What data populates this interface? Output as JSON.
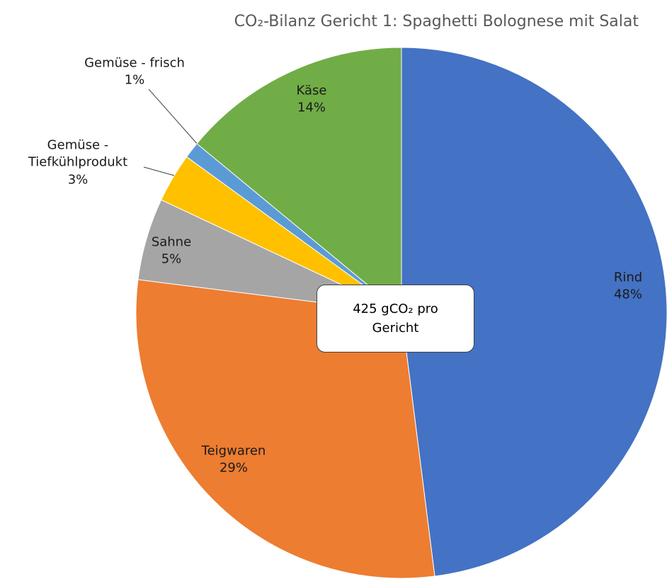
{
  "chart_data": {
    "type": "pie",
    "title": "CO₂-Bilanz Gericht 1: Spaghetti Bolognese mit Salat",
    "annotation": "425 gCO₂ pro Gericht",
    "categories": [
      "Rind",
      "Teigwaren",
      "Sahne",
      "Gemüse - Tiefkühlprodukt",
      "Gemüse - frisch",
      "Käse"
    ],
    "values": [
      48,
      29,
      5,
      3,
      1,
      14
    ],
    "value_labels": [
      "48%",
      "29%",
      "5%",
      "3%",
      "1%",
      "14%"
    ],
    "colors": [
      "#4472c4",
      "#ed7d31",
      "#a5a5a5",
      "#ffc000",
      "#5b9bd5",
      "#70ad47"
    ]
  }
}
